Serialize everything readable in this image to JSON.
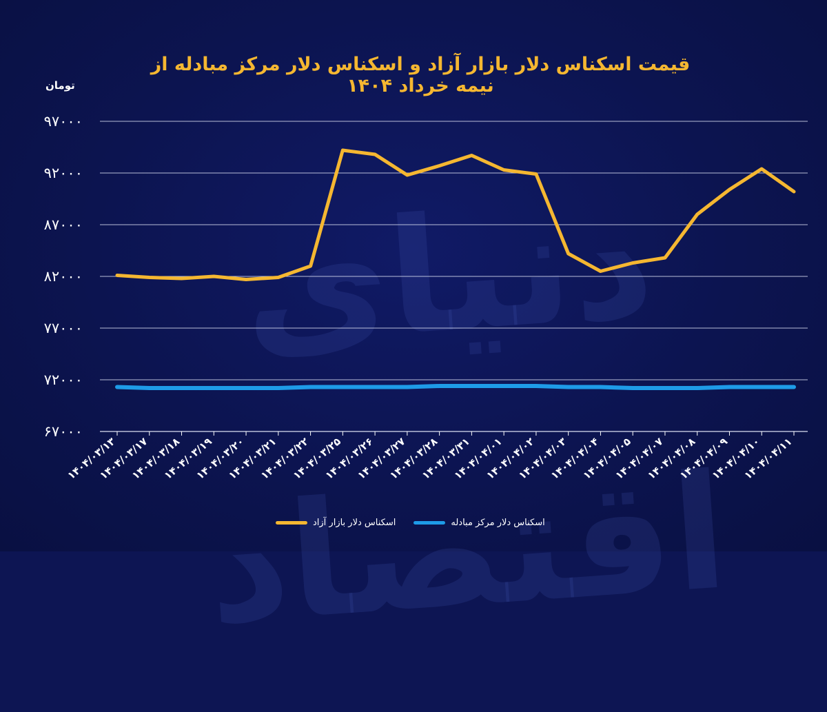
{
  "chart_data": {
    "type": "line",
    "title": "قیمت اسکناس دلار بازار آزاد و اسکناس دلار مرکز مبادله از نیمه خرداد ۱۴۰۴",
    "ylabel": "تومان",
    "xlabel": "",
    "ylim": [
      67000,
      97000
    ],
    "yticks": [
      "۹۷۰۰۰",
      "۹۲۰۰۰",
      "۸۷۰۰۰",
      "۸۲۰۰۰",
      "۷۷۰۰۰",
      "۷۲۰۰۰",
      "۶۷۰۰۰"
    ],
    "ytick_values": [
      97000,
      92000,
      87000,
      82000,
      77000,
      72000,
      67000
    ],
    "categories": [
      "۱۴۰۴/۰۳/۱۳",
      "۱۴۰۴/۰۳/۱۷",
      "۱۴۰۴/۰۳/۱۸",
      "۱۴۰۴/۰۳/۱۹",
      "۱۴۰۴/۰۳/۲۰",
      "۱۴۰۴/۰۳/۲۱",
      "۱۴۰۴/۰۳/۲۲",
      "۱۴۰۴/۰۳/۲۵",
      "۱۴۰۴/۰۳/۲۶",
      "۱۴۰۴/۰۳/۲۷",
      "۱۴۰۴/۰۳/۲۸",
      "۱۴۰۴/۰۳/۳۱",
      "۱۴۰۴/۰۴/۰۱",
      "۱۴۰۴/۰۴/۰۲",
      "۱۴۰۴/۰۴/۰۳",
      "۱۴۰۴/۰۴/۰۴",
      "۱۴۰۴/۰۴/۰۵",
      "۱۴۰۴/۰۴/۰۷",
      "۱۴۰۴/۰۴/۰۸",
      "۱۴۰۴/۰۴/۰۹",
      "۱۴۰۴/۰۴/۱۰",
      "۱۴۰۴/۰۴/۱۱"
    ],
    "series": [
      {
        "name": "اسکناس دلار بازار آزاد",
        "color": "#f5b731",
        "values": [
          82100,
          81900,
          81800,
          82000,
          81700,
          81900,
          83000,
          94200,
          93800,
          91800,
          92700,
          93700,
          92300,
          91900,
          84200,
          82500,
          83300,
          83800,
          88000,
          90400,
          92400,
          90200
        ]
      },
      {
        "name": "اسکناس دلار مرکز مبادله",
        "color": "#1e9be8",
        "values": [
          71300,
          71200,
          71200,
          71200,
          71200,
          71200,
          71300,
          71300,
          71300,
          71300,
          71400,
          71400,
          71400,
          71400,
          71300,
          71300,
          71200,
          71200,
          71200,
          71300,
          71300,
          71300
        ]
      }
    ],
    "grid": true,
    "legend": "bottom"
  },
  "watermark": "دنیای اقتصاد",
  "colors": {
    "background": "#0d1553",
    "grid": "#d8dcf0",
    "axis": "#ffffff"
  }
}
